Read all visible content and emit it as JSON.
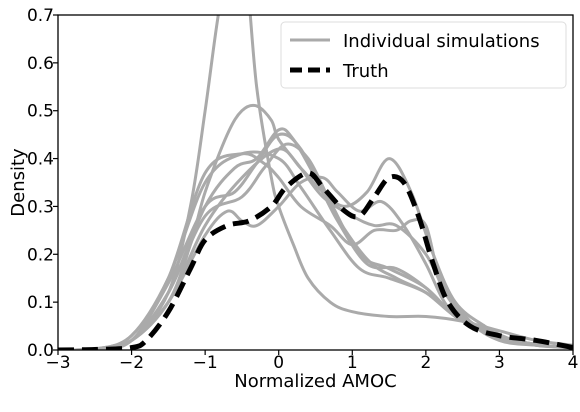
{
  "chart_data": {
    "type": "line",
    "title": "",
    "xlabel": "Normalized AMOC",
    "ylabel": "Density",
    "xlim": [
      -3,
      4
    ],
    "ylim": [
      0,
      0.7
    ],
    "xticks": [
      -3,
      -2,
      -1,
      0,
      1,
      2,
      3,
      4
    ],
    "yticks": [
      0.0,
      0.1,
      0.2,
      0.3,
      0.4,
      0.5,
      0.6,
      0.7
    ],
    "x_tick_labels": [
      "−3",
      "−2",
      "−1",
      "0",
      "1",
      "2",
      "3",
      "4"
    ],
    "y_tick_labels": [
      "0.0",
      "0.1",
      "0.2",
      "0.3",
      "0.4",
      "0.5",
      "0.6",
      "0.7"
    ],
    "grid": false,
    "legend_position": "top-right",
    "legend": [
      {
        "label": "Individual simulations",
        "style": "solid",
        "color": "#aaaaaa"
      },
      {
        "label": "Truth",
        "style": "dashed",
        "color": "#000000"
      }
    ],
    "colors": {
      "simulations": "#aaaaaa",
      "truth": "#000000"
    },
    "series": [
      {
        "label": "Individual simulations",
        "style": "solid",
        "x": [
          -3,
          -2.5,
          -2,
          -1.5,
          -1.2,
          -1,
          -0.8,
          -0.6,
          -0.45,
          -0.3,
          -0.1,
          0,
          0.2,
          0.4,
          0.7,
          1,
          1.5,
          2,
          2.5,
          3,
          3.5,
          4
        ],
        "y": [
          0,
          0.002,
          0.02,
          0.12,
          0.3,
          0.5,
          0.72,
          0.85,
          0.8,
          0.55,
          0.36,
          0.3,
          0.22,
          0.15,
          0.1,
          0.08,
          0.07,
          0.07,
          0.06,
          0.04,
          0.02,
          0.01
        ]
      },
      {
        "label": "Individual simulations",
        "style": "solid",
        "x": [
          -3,
          -2.5,
          -2,
          -1.5,
          -1.2,
          -1,
          -0.7,
          -0.5,
          -0.3,
          -0.1,
          0,
          0.3,
          0.6,
          1,
          1.3,
          1.6,
          2,
          2.3,
          2.6,
          3,
          3.5,
          4
        ],
        "y": [
          0,
          0.002,
          0.02,
          0.1,
          0.22,
          0.33,
          0.45,
          0.5,
          0.51,
          0.48,
          0.44,
          0.38,
          0.32,
          0.28,
          0.26,
          0.26,
          0.2,
          0.11,
          0.06,
          0.03,
          0.01,
          0.005
        ]
      },
      {
        "label": "Individual simulations",
        "style": "solid",
        "x": [
          -3,
          -2.5,
          -2,
          -1.5,
          -1,
          -0.5,
          0,
          0.3,
          0.6,
          0.9,
          1.2,
          1.5,
          1.8,
          2.1,
          2.4,
          2.8,
          3.2,
          3.6,
          4
        ],
        "y": [
          0,
          0.002,
          0.02,
          0.1,
          0.26,
          0.36,
          0.42,
          0.38,
          0.33,
          0.3,
          0.33,
          0.4,
          0.33,
          0.2,
          0.1,
          0.05,
          0.02,
          0.01,
          0.005
        ]
      },
      {
        "label": "Individual simulations",
        "style": "solid",
        "x": [
          -3,
          -2.5,
          -2,
          -1.5,
          -1,
          -0.5,
          -0.2,
          0,
          0.3,
          0.7,
          1,
          1.3,
          1.6,
          1.8,
          2,
          2.2,
          2.6,
          3,
          3.5,
          4
        ],
        "y": [
          0,
          0.002,
          0.03,
          0.15,
          0.37,
          0.41,
          0.39,
          0.36,
          0.3,
          0.26,
          0.22,
          0.25,
          0.25,
          0.27,
          0.26,
          0.15,
          0.06,
          0.02,
          0.01,
          0.005
        ]
      },
      {
        "label": "Individual simulations",
        "style": "solid",
        "x": [
          -3,
          -2.5,
          -2,
          -1.5,
          -1,
          -0.6,
          -0.3,
          0,
          0.2,
          0.5,
          0.8,
          1.2,
          1.6,
          2,
          2.4,
          2.8,
          3.2,
          3.6,
          4
        ],
        "y": [
          0,
          0.002,
          0.02,
          0.12,
          0.3,
          0.38,
          0.4,
          0.46,
          0.44,
          0.36,
          0.27,
          0.18,
          0.17,
          0.13,
          0.07,
          0.04,
          0.02,
          0.01,
          0.005
        ]
      },
      {
        "label": "Individual simulations",
        "style": "solid",
        "x": [
          -3,
          -2.5,
          -2,
          -1.5,
          -1,
          -0.6,
          -0.3,
          0,
          0.3,
          0.7,
          1.2,
          1.6,
          2,
          2.4,
          2.8,
          3.2,
          3.6,
          4
        ],
        "y": [
          0,
          0.002,
          0.02,
          0.14,
          0.3,
          0.33,
          0.39,
          0.45,
          0.42,
          0.3,
          0.19,
          0.15,
          0.12,
          0.07,
          0.04,
          0.02,
          0.01,
          0.005
        ]
      },
      {
        "label": "Individual simulations",
        "style": "solid",
        "x": [
          -3,
          -2.5,
          -2,
          -1.5,
          -1,
          -0.5,
          -0.2,
          0.1,
          0.4,
          0.7,
          1.1,
          1.5,
          2,
          2.4,
          2.8,
          3.2,
          3.6,
          4
        ],
        "y": [
          0,
          0.002,
          0.02,
          0.12,
          0.28,
          0.32,
          0.38,
          0.43,
          0.4,
          0.31,
          0.2,
          0.17,
          0.13,
          0.07,
          0.04,
          0.02,
          0.01,
          0.005
        ]
      },
      {
        "label": "Individual simulations",
        "style": "solid",
        "x": [
          -3,
          -2.5,
          -2,
          -1.5,
          -1,
          -0.5,
          0,
          0.3,
          0.7,
          1.1,
          1.5,
          2,
          2.4,
          2.8,
          3.2,
          3.6,
          4
        ],
        "y": [
          0,
          0.002,
          0.03,
          0.15,
          0.35,
          0.41,
          0.4,
          0.34,
          0.25,
          0.17,
          0.15,
          0.12,
          0.07,
          0.04,
          0.02,
          0.01,
          0.005
        ]
      },
      {
        "label": "Individual simulations",
        "style": "solid",
        "x": [
          -3,
          -2.5,
          -2,
          -1.5,
          -1,
          -0.7,
          -0.5,
          -0.3,
          0,
          0.3,
          0.6,
          0.8,
          1.1,
          1.4,
          1.7,
          2,
          2.3,
          2.7,
          3.1,
          3.5,
          4
        ],
        "y": [
          0,
          0.002,
          0.02,
          0.1,
          0.24,
          0.29,
          0.27,
          0.26,
          0.3,
          0.35,
          0.36,
          0.33,
          0.29,
          0.31,
          0.26,
          0.18,
          0.09,
          0.05,
          0.02,
          0.01,
          0.005
        ]
      },
      {
        "label": "Truth",
        "style": "dashed",
        "x": [
          -3,
          -2.5,
          -2,
          -1.8,
          -1.5,
          -1.2,
          -1,
          -0.7,
          -0.4,
          -0.1,
          0.1,
          0.4,
          0.6,
          0.9,
          1.1,
          1.3,
          1.5,
          1.7,
          1.9,
          2.1,
          2.3,
          2.6,
          3,
          3.5,
          4
        ],
        "y": [
          0,
          0.001,
          0.005,
          0.02,
          0.08,
          0.17,
          0.23,
          0.26,
          0.27,
          0.3,
          0.34,
          0.37,
          0.34,
          0.29,
          0.28,
          0.32,
          0.36,
          0.35,
          0.28,
          0.18,
          0.1,
          0.05,
          0.03,
          0.02,
          0.005
        ]
      }
    ]
  }
}
